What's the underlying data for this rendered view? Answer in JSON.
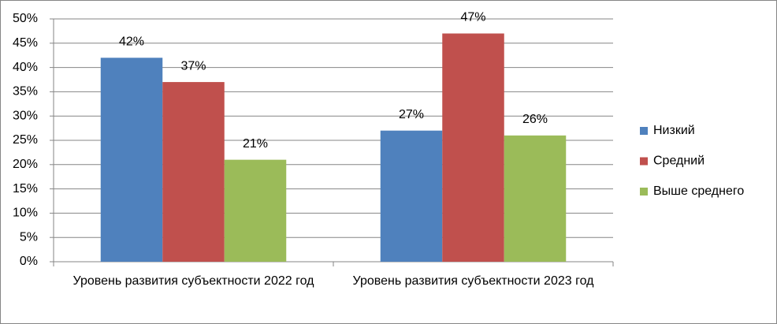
{
  "chart_data": {
    "type": "bar",
    "categories": [
      "Уровень развития субъектности 2022 год",
      "Уровень развития субъектности 2023 год"
    ],
    "series": [
      {
        "name": "Низкий",
        "color": "#4f81bd",
        "values": [
          42,
          27
        ],
        "value_labels": [
          "42%",
          "27%"
        ]
      },
      {
        "name": "Средний",
        "color": "#c0504d",
        "values": [
          37,
          47
        ],
        "value_labels": [
          "37%",
          "47%"
        ]
      },
      {
        "name": "Выше среднего",
        "color": "#9bbb59",
        "values": [
          21,
          26
        ],
        "value_labels": [
          "21%",
          "26%"
        ]
      }
    ],
    "ylim": [
      0,
      50
    ],
    "yticks": [
      {
        "value": 0,
        "label": "0%"
      },
      {
        "value": 5,
        "label": "5%"
      },
      {
        "value": 10,
        "label": "10%"
      },
      {
        "value": 15,
        "label": "15%"
      },
      {
        "value": 20,
        "label": "20%"
      },
      {
        "value": 25,
        "label": "25%"
      },
      {
        "value": 30,
        "label": "30%"
      },
      {
        "value": 35,
        "label": "35%"
      },
      {
        "value": 40,
        "label": "40%"
      },
      {
        "value": 45,
        "label": "45%"
      },
      {
        "value": 50,
        "label": "50%"
      }
    ],
    "grid": true,
    "legend": "right"
  }
}
